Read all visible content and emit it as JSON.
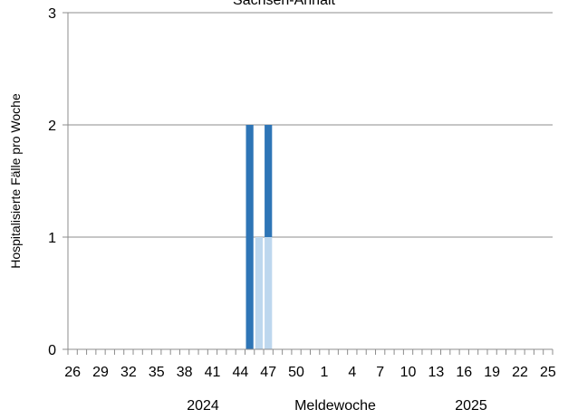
{
  "chart_data": {
    "type": "bar",
    "stacked": true,
    "title": "Sachsen-Anhalt",
    "ylabel": "Hospitalisierte Fälle pro Woche",
    "xlabel": "Meldewoche",
    "ylim": [
      0,
      3
    ],
    "yticks": [
      "0",
      "1",
      "2",
      "3"
    ],
    "grid": true,
    "x": [
      "26",
      "27",
      "28",
      "29",
      "30",
      "31",
      "32",
      "33",
      "34",
      "35",
      "36",
      "37",
      "38",
      "39",
      "40",
      "41",
      "42",
      "43",
      "44",
      "45",
      "46",
      "47",
      "48",
      "49",
      "50",
      "51",
      "52",
      "1",
      "2",
      "3",
      "4",
      "5",
      "6",
      "7",
      "8",
      "9",
      "10",
      "11",
      "12",
      "13",
      "14",
      "15",
      "16",
      "17",
      "18",
      "19",
      "20",
      "21",
      "22",
      "23",
      "24",
      "25"
    ],
    "xtick_labels": [
      "26",
      "29",
      "32",
      "35",
      "38",
      "41",
      "44",
      "47",
      "50",
      "1",
      "4",
      "7",
      "10",
      "13",
      "16",
      "19",
      "22",
      "25"
    ],
    "year_labels": [
      "2024",
      "2025"
    ],
    "series": [
      {
        "color": "#bdd7ee",
        "values": [
          0,
          0,
          0,
          0,
          0,
          0,
          0,
          0,
          0,
          0,
          0,
          0,
          0,
          0,
          0,
          0,
          0,
          0,
          0,
          0,
          1,
          1,
          0,
          0,
          0,
          0,
          0,
          0,
          0,
          0,
          0,
          0,
          0,
          0,
          0,
          0,
          0,
          0,
          0,
          0,
          0,
          0,
          0,
          0,
          0,
          0,
          0,
          0,
          0,
          0,
          0,
          0
        ]
      },
      {
        "color": "#2e75b6",
        "values": [
          0,
          0,
          0,
          0,
          0,
          0,
          0,
          0,
          0,
          0,
          0,
          0,
          0,
          0,
          0,
          0,
          0,
          0,
          0,
          2,
          0,
          1,
          0,
          0,
          0,
          0,
          0,
          0,
          0,
          0,
          0,
          0,
          0,
          0,
          0,
          0,
          0,
          0,
          0,
          0,
          0,
          0,
          0,
          0,
          0,
          0,
          0,
          0,
          0,
          0,
          0,
          0
        ]
      }
    ]
  }
}
